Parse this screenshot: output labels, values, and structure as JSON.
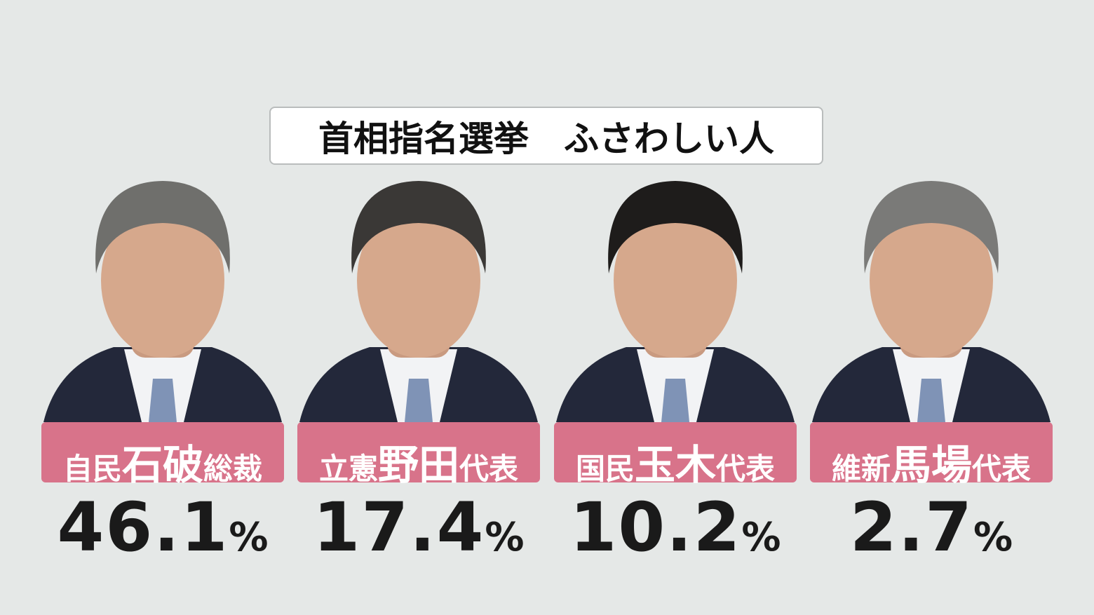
{
  "header": {
    "title": "首相指名選挙　ふさわしい人"
  },
  "candidates": [
    {
      "party": "自民",
      "surname": "石破",
      "role": "総裁",
      "value": 46.1,
      "unit": "%"
    },
    {
      "party": "立憲",
      "surname": "野田",
      "role": "代表",
      "value": 17.4,
      "unit": "%"
    },
    {
      "party": "国民",
      "surname": "玉木",
      "role": "代表",
      "value": 10.2,
      "unit": "%"
    },
    {
      "party": "維新",
      "surname": "馬場",
      "role": "代表",
      "value": 2.7,
      "unit": "%"
    }
  ]
}
